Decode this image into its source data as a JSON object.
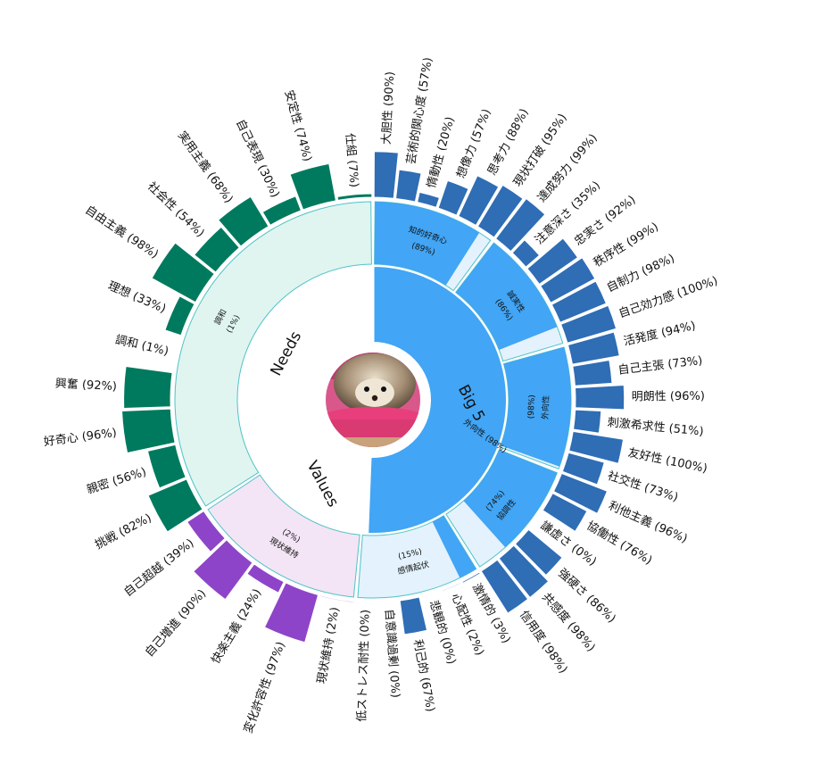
{
  "chart_data": {
    "type": "sunburst",
    "colors": {
      "big5_dark": "#2f6db5",
      "big5_light": "#42a5f5",
      "big5_pale": "#e3f2fd",
      "needs_dark": "#007a5e",
      "needs_pale": "#e0f5f0",
      "values_dark": "#8e44c8",
      "values_pale": "#f3e5f5",
      "trait_border": "#4fc3c7"
    },
    "center_image": "hedgehog-photo",
    "groups": [
      {
        "id": "big5",
        "name": "Big 5",
        "label": "外向性",
        "percent": "(98%)",
        "traits": [
          {
            "name": "知的好奇心",
            "percent_label": "(89%)",
            "value": 89,
            "facets": [
              {
                "label": "大胆性 (90%)",
                "value": 90
              },
              {
                "label": "芸術的関心度 (57%)",
                "value": 57
              },
              {
                "label": "情動性 (20%)",
                "value": 20
              },
              {
                "label": "想像力 (57%)",
                "value": 57
              },
              {
                "label": "思考力 (88%)",
                "value": 88
              },
              {
                "label": "現状打破 (95%)",
                "value": 95
              }
            ]
          },
          {
            "name": "誠実性",
            "percent_label": "(86%)",
            "value": 86,
            "facets": [
              {
                "label": "達成努力 (99%)",
                "value": 99
              },
              {
                "label": "注意深さ (35%)",
                "value": 35
              },
              {
                "label": "忠実さ (92%)",
                "value": 92
              },
              {
                "label": "秩序性 (99%)",
                "value": 99
              },
              {
                "label": "自制力 (98%)",
                "value": 98
              },
              {
                "label": "自己効力感 (100%)",
                "value": 100
              }
            ]
          },
          {
            "name": "外向性",
            "percent_label": "(98%)",
            "value": 98,
            "facets": [
              {
                "label": "活発度 (94%)",
                "value": 94
              },
              {
                "label": "自己主張 (73%)",
                "value": 73
              },
              {
                "label": "明朗性 (96%)",
                "value": 96
              },
              {
                "label": "刺激希求性 (51%)",
                "value": 51
              },
              {
                "label": "友好性 (100%)",
                "value": 100
              },
              {
                "label": "社交性 (73%)",
                "value": 73
              }
            ]
          },
          {
            "name": "協調性",
            "percent_label": "(74%)",
            "value": 74,
            "facets": [
              {
                "label": "利他主義 (96%)",
                "value": 96
              },
              {
                "label": "協働性 (76%)",
                "value": 76
              },
              {
                "label": "謙虚さ (0%)",
                "value": 0
              },
              {
                "label": "強硬さ (86%)",
                "value": 86
              },
              {
                "label": "共感度 (98%)",
                "value": 98
              },
              {
                "label": "信用度 (98%)",
                "value": 98
              }
            ]
          },
          {
            "name": "感情起伏",
            "percent_label": "(15%)",
            "value": 15,
            "facets": [
              {
                "label": "激情的 (3%)",
                "value": 3
              },
              {
                "label": "心配性 (2%)",
                "value": 2
              },
              {
                "label": "悲観的 (0%)",
                "value": 0
              },
              {
                "label": "利己的 (67%)",
                "value": 67
              },
              {
                "label": "自意識過剰 (0%)",
                "value": 0
              },
              {
                "label": "低ストレス耐性 (0%)",
                "value": 0
              }
            ]
          }
        ]
      },
      {
        "id": "values",
        "name": "Values",
        "label": "現状維持",
        "percent": "(2%)",
        "traits": [
          {
            "name": "現状維持",
            "percent_label": "(2%)",
            "value": 2,
            "facets": [
              {
                "label": "現状維持 (2%)",
                "value": 2
              },
              {
                "label": "変化許容性 (97%)",
                "value": 97
              },
              {
                "label": "快楽主義 (24%)",
                "value": 24
              },
              {
                "label": "自己増進 (90%)",
                "value": 90
              },
              {
                "label": "自己超越 (39%)",
                "value": 39
              }
            ]
          }
        ]
      },
      {
        "id": "needs",
        "name": "Needs",
        "label": "調和",
        "percent": "(1%)",
        "traits": [
          {
            "name": "調和",
            "percent_label": "(1%)",
            "value": 1,
            "facets": [
              {
                "label": "挑戦 (82%)",
                "value": 82
              },
              {
                "label": "親密 (56%)",
                "value": 56
              },
              {
                "label": "好奇心 (96%)",
                "value": 96
              },
              {
                "label": "興奮 (92%)",
                "value": 92
              },
              {
                "label": "調和 (1%)",
                "value": 1
              },
              {
                "label": "理想 (33%)",
                "value": 33
              },
              {
                "label": "自由主義 (98%)",
                "value": 98
              },
              {
                "label": "社会性 (54%)",
                "value": 54
              },
              {
                "label": "実用主義 (68%)",
                "value": 68
              },
              {
                "label": "自己表現 (30%)",
                "value": 30
              },
              {
                "label": "安定性 (74%)",
                "value": 74
              },
              {
                "label": "仕組 (7%)",
                "value": 7
              }
            ]
          }
        ]
      }
    ]
  }
}
